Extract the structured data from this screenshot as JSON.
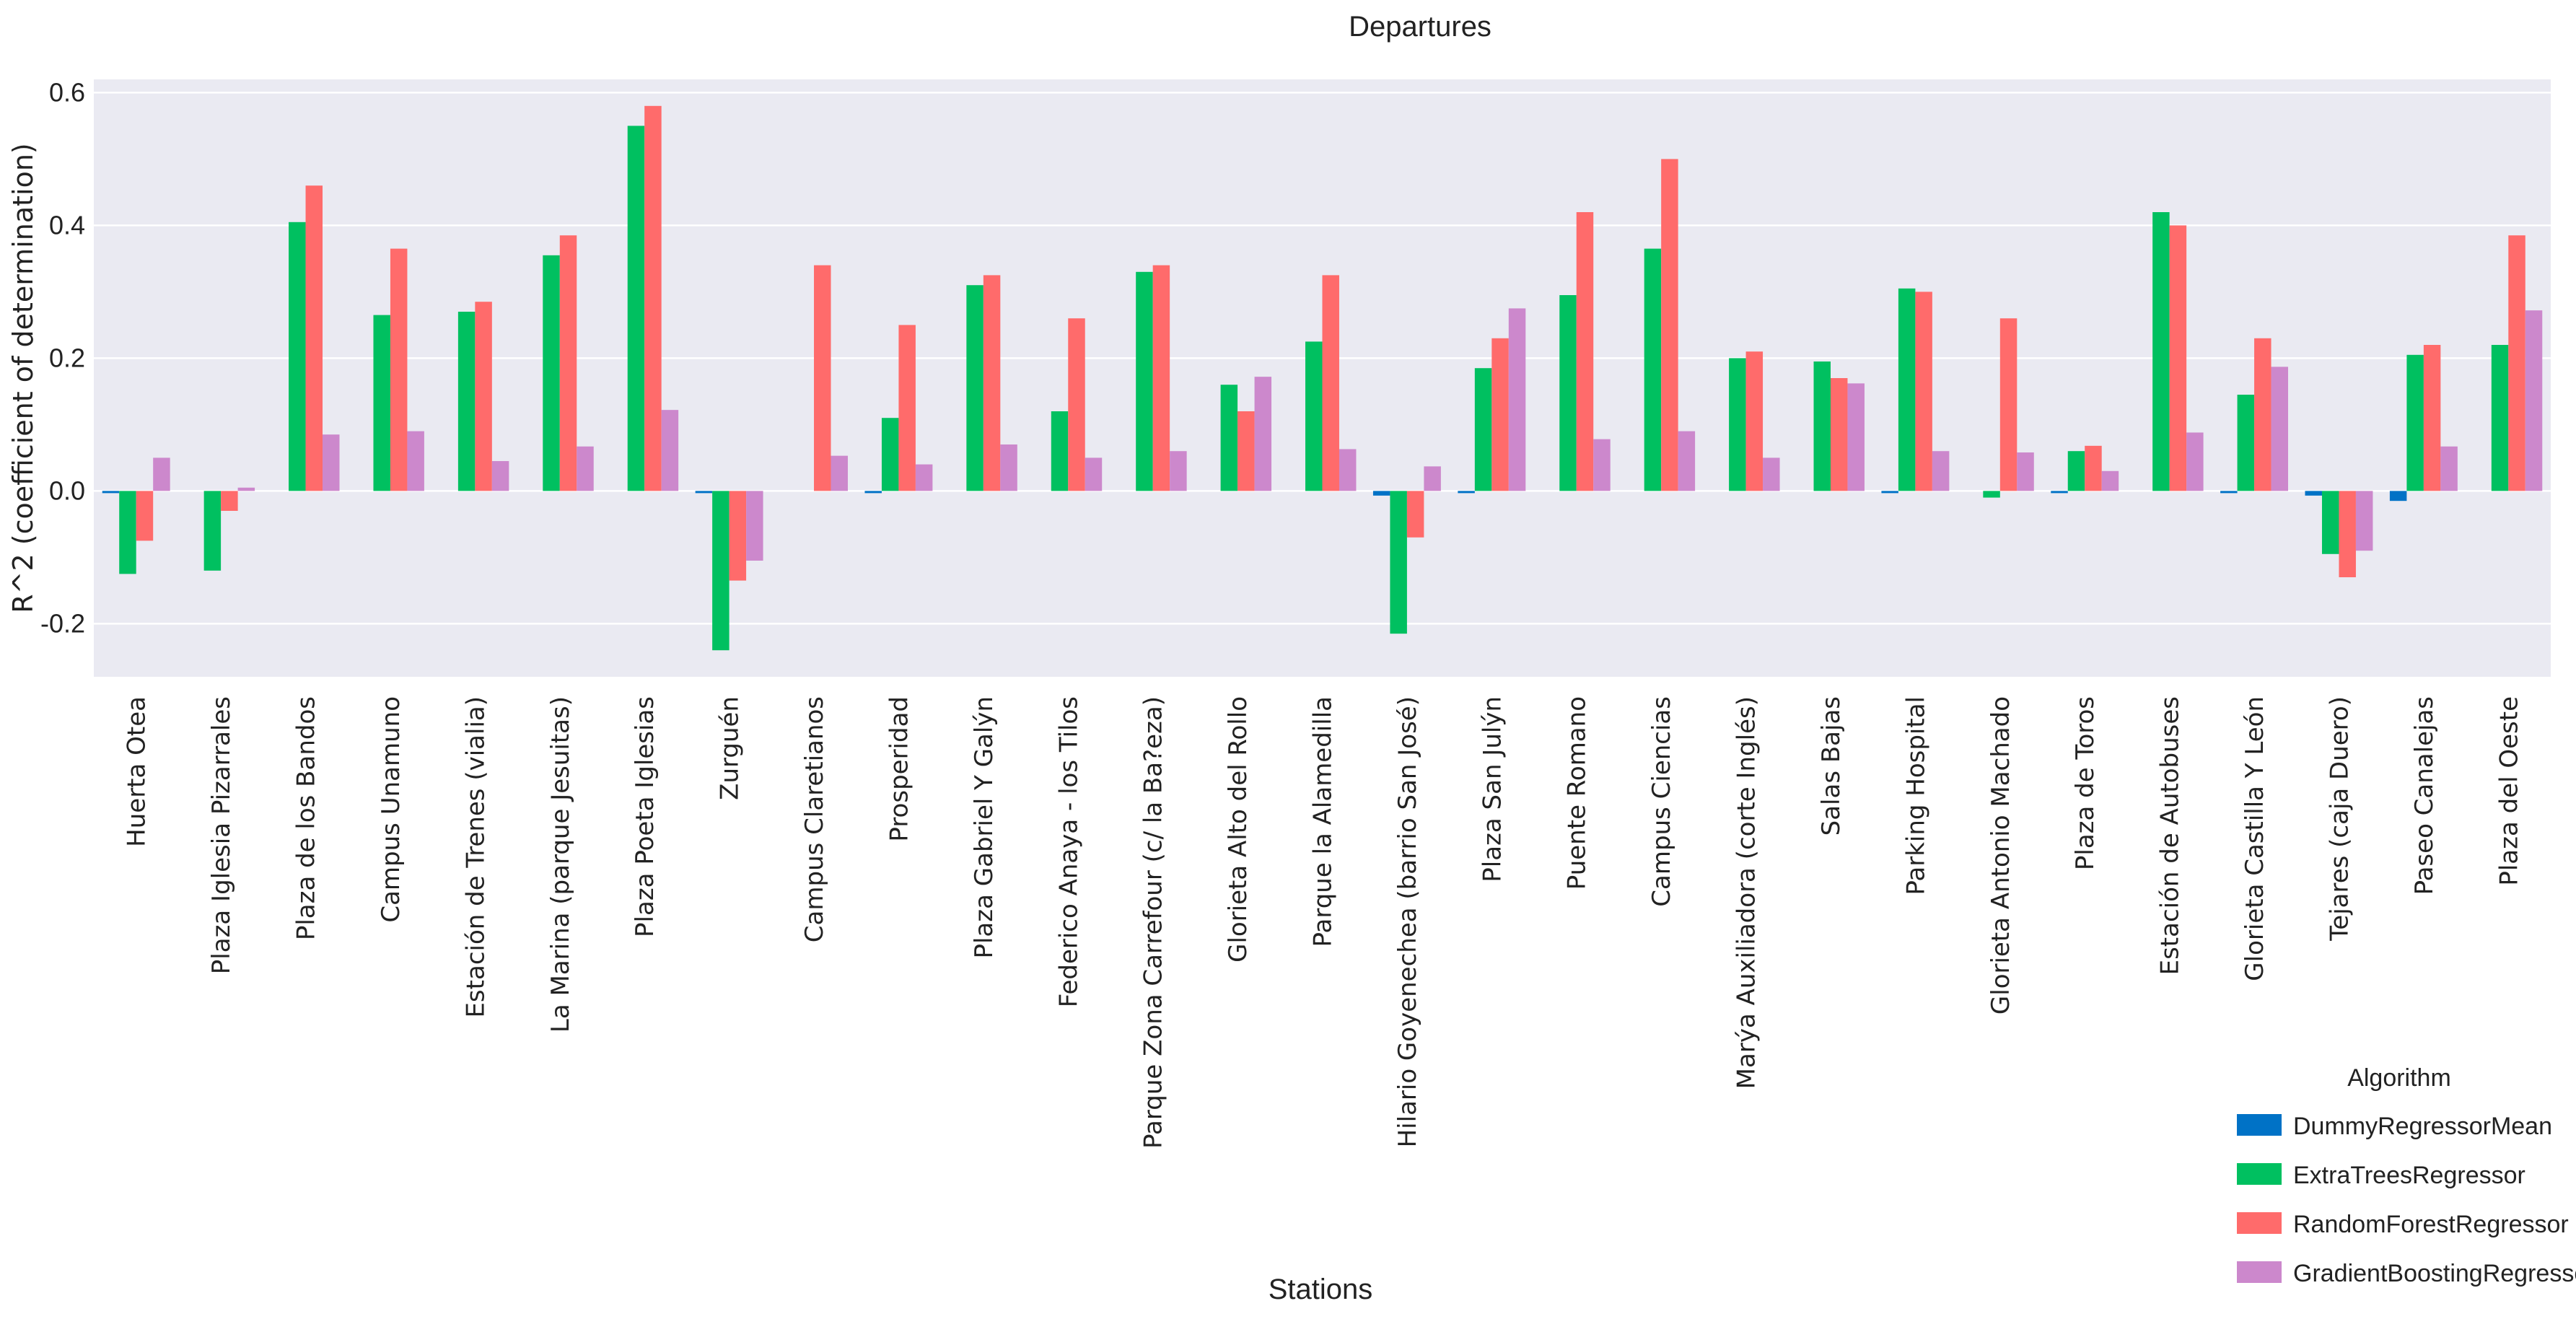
{
  "chart_data": {
    "type": "bar",
    "title": "Departures",
    "xlabel": "Stations",
    "ylabel": "R^2 (coefficient of determination)",
    "ylim": [
      -0.28,
      0.62
    ],
    "yticks": [
      -0.2,
      0.0,
      0.2,
      0.4,
      0.6
    ],
    "ytick_labels": [
      "-0.2",
      "0.0",
      "0.2",
      "0.4",
      "0.6"
    ],
    "grid": true,
    "legend_title": "Algorithm",
    "legend_position": "bottom-right",
    "categories": [
      "Huerta Otea",
      "Plaza Iglesia Pizarrales",
      "Plaza de los Bandos",
      "Campus Unamuno",
      "Estación de Trenes (vialia)",
      "La Marina (parque Jesuitas)",
      "Plaza Poeta Iglesias",
      "Zurguén",
      "Campus Claretianos",
      "Prosperidad",
      "Plaza Gabriel Y Galýn",
      "Federico Anaya - los Tilos",
      "Parque Zona Carrefour (c/ la Ba?eza)",
      "Glorieta Alto del Rollo",
      "Parque la Alamedilla",
      "Hilario Goyenechea (barrio San José)",
      "Plaza San Julýn",
      "Puente Romano",
      "Campus Ciencias",
      "Marýa Auxiliadora (corte Inglés)",
      "Salas Bajas",
      "Parking Hospital",
      "Glorieta Antonio Machado",
      "Plaza de Toros",
      "Estación de Autobuses",
      "Glorieta Castilla Y León",
      "Tejares (caja Duero)",
      "Paseo Canalejas",
      "Plaza del Oeste"
    ],
    "series": [
      {
        "name": "DummyRegressorMean",
        "color": "#0072c6",
        "values": [
          -0.002,
          0,
          0,
          0,
          0,
          0,
          0,
          -0.002,
          0,
          -0.003,
          0,
          0,
          0,
          0,
          0,
          -0.007,
          -0.003,
          0,
          0,
          0,
          0,
          -0.003,
          0,
          -0.003,
          0,
          -0.003,
          -0.007,
          -0.015,
          0
        ]
      },
      {
        "name": "ExtraTreesRegressor",
        "color": "#00c060",
        "values": [
          -0.125,
          -0.12,
          0.405,
          0.265,
          0.27,
          0.355,
          0.55,
          -0.24,
          0,
          0.11,
          0.31,
          0.12,
          0.33,
          0.16,
          0.225,
          -0.215,
          0.185,
          0.295,
          0.365,
          0.2,
          0.195,
          0.305,
          -0.01,
          0.06,
          0.42,
          0.145,
          -0.095,
          0.205,
          0.22
        ]
      },
      {
        "name": "RandomForestRegressor",
        "color": "#ff6b6b",
        "values": [
          -0.075,
          -0.03,
          0.46,
          0.365,
          0.285,
          0.385,
          0.58,
          -0.135,
          0.34,
          0.25,
          0.325,
          0.26,
          0.34,
          0.12,
          0.325,
          -0.07,
          0.23,
          0.42,
          0.5,
          0.21,
          0.17,
          0.3,
          0.26,
          0.068,
          0.4,
          0.23,
          -0.13,
          0.22,
          0.385
        ]
      },
      {
        "name": "GradientBoostingRegressor",
        "color": "#cc88cc",
        "values": [
          0.05,
          0.005,
          0.085,
          0.09,
          0.045,
          0.067,
          0.122,
          -0.105,
          0.053,
          0.04,
          0.07,
          0.05,
          0.06,
          0.172,
          0.063,
          0.037,
          0.275,
          0.078,
          0.09,
          0.05,
          0.162,
          0.06,
          0.058,
          0.03,
          0.088,
          0.187,
          -0.09,
          0.067,
          0.272
        ]
      }
    ]
  }
}
